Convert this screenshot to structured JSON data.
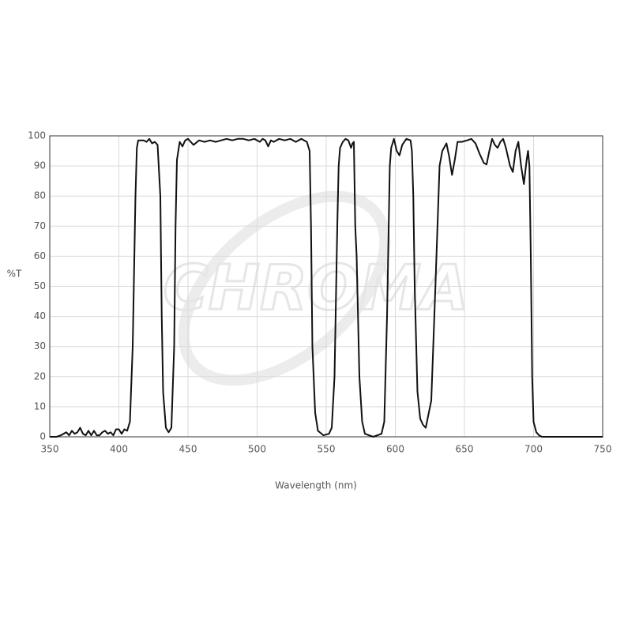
{
  "chart_data": {
    "type": "line",
    "watermark": "CHROMA",
    "xlabel": "Wavelength (nm)",
    "ylabel": "%T",
    "xlim": [
      350,
      750
    ],
    "xticks": [
      350,
      400,
      450,
      500,
      550,
      600,
      650,
      700,
      750
    ],
    "ylim": [
      0,
      100
    ],
    "yticks": [
      0,
      10,
      20,
      30,
      40,
      50,
      60,
      70,
      80,
      90,
      100
    ],
    "grid": true,
    "series": [
      {
        "color": "#111111",
        "x": [
          350,
          355,
          358,
          360,
          362,
          364,
          366,
          368,
          370,
          372,
          374,
          376,
          378,
          380,
          382,
          384,
          386,
          388,
          390,
          392,
          394,
          396,
          398,
          400,
          402,
          404,
          406,
          408,
          410,
          412,
          413,
          414,
          418,
          420,
          422,
          424,
          426,
          428,
          430,
          431,
          432,
          434,
          436,
          438,
          440,
          441,
          442,
          444,
          446,
          448,
          450,
          454,
          458,
          462,
          466,
          470,
          474,
          478,
          482,
          486,
          490,
          494,
          498,
          502,
          504,
          506,
          508,
          510,
          512,
          516,
          520,
          524,
          528,
          532,
          536,
          538,
          539,
          540,
          542,
          544,
          548,
          552,
          554,
          556,
          558,
          559,
          560,
          562,
          564,
          566,
          568,
          569,
          570,
          571,
          572,
          574,
          576,
          578,
          584,
          590,
          592,
          594,
          596,
          597,
          599,
          601,
          603,
          605,
          608,
          611,
          612,
          613,
          614,
          616,
          618,
          620,
          622,
          626,
          629,
          632,
          634,
          637,
          639,
          641,
          643,
          645,
          648,
          652,
          655,
          658,
          661,
          664,
          666,
          668,
          670,
          672,
          674,
          676,
          678,
          680,
          683,
          685,
          687,
          689,
          691,
          693,
          695,
          696,
          697,
          698,
          699,
          700,
          702,
          704,
          706,
          750
        ],
        "values": [
          0,
          0,
          0.5,
          1,
          1.5,
          0.5,
          2,
          1,
          1.5,
          3,
          1,
          0.5,
          2,
          0.5,
          2,
          0.5,
          0.5,
          1.5,
          2,
          1,
          1.5,
          0.5,
          2.5,
          2.5,
          1,
          2.5,
          2,
          5,
          30,
          80,
          96,
          98.5,
          98.5,
          98,
          99,
          97.5,
          98,
          97,
          80,
          40,
          15,
          3,
          1.5,
          3,
          30,
          70,
          92,
          98,
          96.5,
          98.5,
          99,
          97,
          98.5,
          98,
          98.5,
          98,
          98.5,
          99,
          98.5,
          99,
          99,
          98.5,
          99,
          98,
          99,
          98.5,
          96.5,
          98.5,
          98,
          99,
          98.5,
          99,
          98,
          99,
          98,
          95,
          70,
          30,
          8,
          2,
          0.5,
          1,
          3,
          20,
          70,
          90,
          96,
          98,
          99,
          98.5,
          96,
          97.5,
          98,
          70,
          60,
          20,
          5,
          1,
          0,
          1,
          5,
          40,
          90,
          96,
          99,
          95,
          93.5,
          97,
          99,
          98.5,
          95,
          80,
          50,
          15,
          6,
          4,
          3,
          12,
          50,
          90,
          95,
          97.5,
          93,
          87,
          92,
          98,
          98,
          98.5,
          99,
          97.5,
          94,
          91,
          90.5,
          95,
          99,
          97,
          96,
          98,
          99,
          96,
          90,
          88,
          95,
          98,
          90,
          84,
          92,
          95,
          90,
          60,
          20,
          5,
          1.5,
          0.5,
          0,
          0
        ]
      }
    ]
  }
}
